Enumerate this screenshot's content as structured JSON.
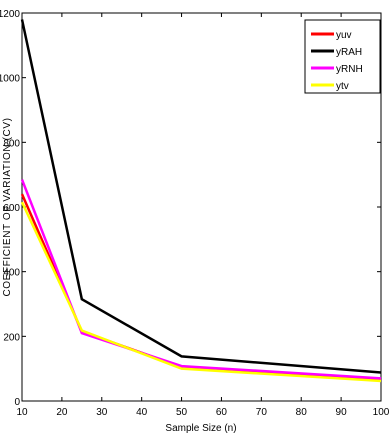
{
  "chart_data": {
    "type": "line",
    "xlabel": "Sample Size (n)",
    "ylabel": "COEFFICIENT OF VARIATION (CV)",
    "xlim": [
      10,
      100
    ],
    "ylim": [
      0,
      1200
    ],
    "xticks": [
      10,
      20,
      30,
      40,
      50,
      60,
      70,
      80,
      90,
      100
    ],
    "yticks": [
      0,
      200,
      400,
      600,
      800,
      1000,
      1200
    ],
    "grid": false,
    "legend_position": "top-right",
    "x": [
      10,
      25,
      50,
      100
    ],
    "series": [
      {
        "name": "yuv",
        "color": "#ff0000",
        "values": [
          640,
          215,
          105,
          68
        ]
      },
      {
        "name": "yRAH",
        "color": "#000000",
        "values": [
          1180,
          315,
          138,
          88
        ]
      },
      {
        "name": "yRNH",
        "color": "#ff00ff",
        "values": [
          685,
          210,
          108,
          70
        ]
      },
      {
        "name": "ytv",
        "color": "#ffff00",
        "values": [
          615,
          218,
          100,
          62
        ]
      }
    ]
  }
}
